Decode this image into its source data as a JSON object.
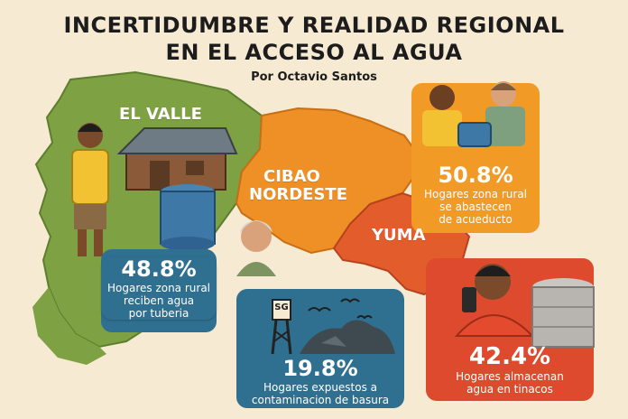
{
  "title_line1": "INCERTIDUMBRE Y REALIDAD REGIONAL",
  "title_line2": "EN EL ACCESO AL AGUA",
  "byline": "Por Octavio Santos",
  "regions": {
    "el_valle": "EL VALLE",
    "cibao_nordeste_1": "CIBAO",
    "cibao_nordeste_2": "NORDESTE",
    "yuma": "YUMA"
  },
  "stats": [
    {
      "value": "48.8%",
      "line1": "Hogares zona rural",
      "line2": "reciben agua",
      "line3": "por tuberia"
    },
    {
      "value": "50.8%",
      "line1": "Hogares zona rural",
      "line2": "se abastecen",
      "line3": "de acueducto"
    },
    {
      "value": "19.8%",
      "line1": "Hogares expuestos a",
      "line2": "contaminacion de basura"
    },
    {
      "value": "42.4%",
      "line1": "Hogares almacenan",
      "line2": "agua en tinacos"
    }
  ],
  "antenna_label": "SG",
  "colors": {
    "background": "#f6ead3",
    "el_valle_green": "#7da143",
    "cibao_orange": "#ef9026",
    "yuma_red": "#e35c2c",
    "card_blue": "#2f6f90",
    "card_orange": "#f29a26",
    "card_red": "#de4a2e"
  }
}
